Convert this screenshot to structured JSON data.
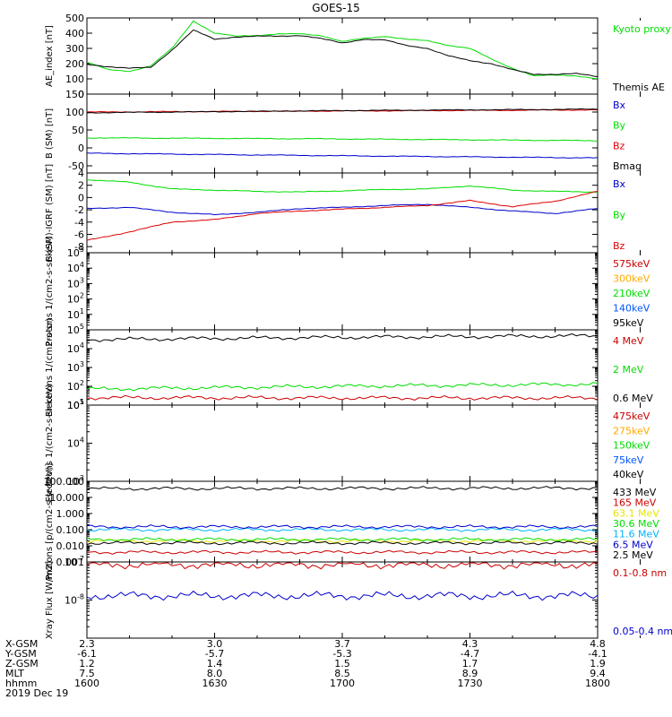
{
  "title": "GOES-15",
  "x_axis": {
    "rows": [
      {
        "label": "X-GSM",
        "values": [
          "2.3",
          "3.0",
          "3.7",
          "4.3",
          "4.8"
        ]
      },
      {
        "label": "Y-GSM",
        "values": [
          "-6.1",
          "-5.7",
          "-5.3",
          "-4.7",
          "-4.1"
        ]
      },
      {
        "label": "Z-GSM",
        "values": [
          "1.2",
          "1.4",
          "1.5",
          "1.7",
          "1.9"
        ]
      },
      {
        "label": "MLT",
        "values": [
          "7.5",
          "8.0",
          "8.5",
          "8.9",
          "9.4"
        ]
      },
      {
        "label": "hhmm",
        "values": [
          "1600",
          "1630",
          "1700",
          "1730",
          "1800"
        ]
      }
    ],
    "date": "2019 Dec 19"
  },
  "chart_data": [
    {
      "type": "line",
      "ylabel": "AE_index [nT]",
      "ylim": [
        0,
        500
      ],
      "yticks": [
        "0",
        "100",
        "200",
        "300",
        "400",
        "500"
      ],
      "x": [
        1600,
        1605,
        1610,
        1615,
        1620,
        1625,
        1630,
        1635,
        1640,
        1645,
        1650,
        1655,
        1700,
        1705,
        1710,
        1715,
        1720,
        1725,
        1730,
        1735,
        1740,
        1745,
        1750,
        1755,
        1800
      ],
      "series": [
        {
          "name": "Kyoto proxy AE",
          "color": "#00dd00",
          "values": [
            210,
            160,
            150,
            185,
            300,
            480,
            400,
            380,
            385,
            395,
            395,
            385,
            345,
            365,
            380,
            360,
            350,
            320,
            300,
            230,
            170,
            120,
            125,
            120,
            100
          ]
        },
        {
          "name": "Themis AE",
          "color": "#000000",
          "values": [
            195,
            180,
            170,
            175,
            290,
            420,
            360,
            375,
            380,
            380,
            385,
            365,
            335,
            360,
            355,
            320,
            300,
            250,
            220,
            200,
            160,
            130,
            130,
            135,
            115
          ]
        }
      ]
    },
    {
      "type": "line",
      "ylabel": "B (SM) [nT]",
      "ylim": [
        -70,
        150
      ],
      "yticks": [
        "-50",
        "0",
        "50",
        "100",
        "150"
      ],
      "x": [
        1600,
        1700,
        1800
      ],
      "series": [
        {
          "name": "Bx",
          "color": "#0000cc",
          "values": [
            -15,
            -22,
            -28
          ]
        },
        {
          "name": "By",
          "color": "#00dd00",
          "values": [
            28,
            25,
            20
          ]
        },
        {
          "name": "Bz",
          "color": "#dd0000",
          "values": [
            100,
            103,
            106
          ]
        },
        {
          "name": "Bmag",
          "color": "#000000",
          "values": [
            98,
            104,
            108
          ]
        }
      ]
    },
    {
      "type": "line",
      "ylabel": "B (SM)-IGRF (SM) [nT]",
      "ylim": [
        -9,
        4
      ],
      "yticks": [
        "-8",
        "-6",
        "-4",
        "-2",
        "0",
        "2",
        "4"
      ],
      "x": [
        1600,
        1610,
        1620,
        1630,
        1640,
        1650,
        1700,
        1710,
        1720,
        1730,
        1740,
        1750,
        1800
      ],
      "series": [
        {
          "name": "Bx",
          "color": "#0000cc",
          "values": [
            -1.8,
            -1.6,
            -2.4,
            -2.8,
            -2.4,
            -1.8,
            -1.6,
            -1.3,
            -1.1,
            -1.6,
            -2.2,
            -2.6,
            -1.8
          ]
        },
        {
          "name": "By",
          "color": "#00dd00",
          "values": [
            2.9,
            2.5,
            1.4,
            1.2,
            1.0,
            0.9,
            1.1,
            1.3,
            1.4,
            1.9,
            1.2,
            1.0,
            0.9
          ]
        },
        {
          "name": "Bz",
          "color": "#dd0000",
          "values": [
            -7.0,
            -5.6,
            -4.0,
            -3.6,
            -2.6,
            -2.2,
            -1.9,
            -1.6,
            -1.3,
            -0.5,
            -1.5,
            -0.6,
            1.0
          ]
        }
      ]
    },
    {
      "type": "line",
      "ylabel": "Protons 1/(cm2-s-sr-keV)",
      "yscale": "log",
      "ylim": [
        1,
        100000
      ],
      "yticks": [
        "10^1",
        "10^2",
        "10^3",
        "10^4",
        "10^5"
      ],
      "series": [
        {
          "name": "575keV",
          "color": "#cc0000",
          "values": []
        },
        {
          "name": "300keV",
          "color": "#ffaa00",
          "values": []
        },
        {
          "name": "210keV",
          "color": "#00dd00",
          "values": []
        },
        {
          "name": "140keV",
          "color": "#0055ff",
          "values": []
        },
        {
          "name": "95keV",
          "color": "#000000",
          "values": []
        }
      ]
    },
    {
      "type": "line",
      "ylabel": "Electrons 1/(cm2-s-sr)",
      "yscale": "log",
      "ylim": [
        10,
        100000
      ],
      "yticks": [
        "10^1",
        "10^2",
        "10^3",
        "10^4",
        "10^5"
      ],
      "x": [
        1600,
        1700,
        1800
      ],
      "series": [
        {
          "name": "4 MeV",
          "color": "#cc0000",
          "values": [
            25,
            24,
            24
          ]
        },
        {
          "name": "2 MeV",
          "color": "#00dd00",
          "values": [
            70,
            100,
            130
          ]
        },
        {
          "name": "0.6 MeV",
          "color": "#000000",
          "values": [
            30000,
            40000,
            48000
          ]
        }
      ]
    },
    {
      "type": "line",
      "ylabel": "Electrons 1/(cm2-s-sr-keV)",
      "yscale": "log",
      "ylim": [
        1000,
        100000
      ],
      "yticks": [
        "10^3",
        "10^4",
        "10^5"
      ],
      "series": [
        {
          "name": "475keV",
          "color": "#cc0000",
          "values": []
        },
        {
          "name": "275keV",
          "color": "#ffaa00",
          "values": []
        },
        {
          "name": "150keV",
          "color": "#00dd00",
          "values": []
        },
        {
          "name": "75keV",
          "color": "#0055ff",
          "values": []
        },
        {
          "name": "40keV",
          "color": "#000000",
          "values": []
        }
      ]
    },
    {
      "type": "line",
      "ylabel": "Protons [p/(cm2-s-sr-keV)]",
      "yscale": "log",
      "ylim": [
        0.001,
        100
      ],
      "yticks": [
        "0.001",
        "0.010",
        "0.100",
        "1.000",
        "10.000",
        "100.000"
      ],
      "x": [
        1600,
        1800
      ],
      "series": [
        {
          "name": "433 MeV",
          "color": "#000000",
          "values": [
            35,
            38
          ]
        },
        {
          "name": "165 MeV",
          "color": "#cc0000",
          "values": [
            0.004,
            0.004
          ]
        },
        {
          "name": "63.1 MeV",
          "color": "#e6e600",
          "values": [
            0.02,
            0.02
          ]
        },
        {
          "name": "30.6 MeV",
          "color": "#00dd00",
          "values": [
            0.025,
            0.025
          ]
        },
        {
          "name": "11.6 MeV",
          "color": "#00b4ff",
          "values": [
            0.1,
            0.1
          ]
        },
        {
          "name": "6.5 MeV",
          "color": "#0000cc",
          "values": [
            0.15,
            0.15
          ]
        },
        {
          "name": "2.5 MeV",
          "color": "#000000",
          "values": [
            0.015,
            0.015
          ]
        }
      ]
    },
    {
      "type": "line",
      "ylabel": "Xray Flux [W/m2]",
      "yscale": "log",
      "ylim": [
        1e-09,
        1e-07
      ],
      "yticks": [
        "10^-7",
        "10^-8"
      ],
      "x": [
        1600,
        1800
      ],
      "series": [
        {
          "name": "0.1-0.8 nm",
          "color": "#cc0000",
          "values": [
            8.5e-08,
            8.5e-08
          ]
        },
        {
          "name": "0.05-0.4 nm",
          "color": "#0000cc",
          "values": [
            1.3e-08,
            1.3e-08
          ]
        }
      ]
    }
  ]
}
